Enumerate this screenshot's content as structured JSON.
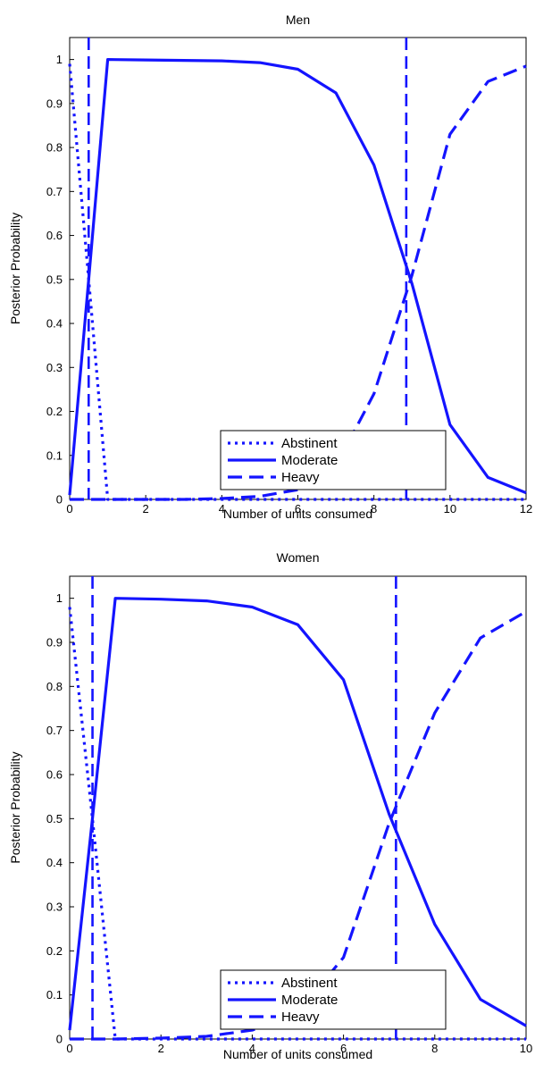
{
  "chart_data": [
    {
      "type": "line",
      "title": "Men",
      "xlabel": "Number of units consumed",
      "ylabel": "Posterior Probability",
      "xlim": [
        0,
        12
      ],
      "ylim": [
        0,
        1.05
      ],
      "xticks": [
        0,
        2,
        4,
        6,
        8,
        10,
        12
      ],
      "yticks": [
        0,
        0.1,
        0.2,
        0.3,
        0.4,
        0.5,
        0.6,
        0.7,
        0.8,
        0.9,
        1
      ],
      "grid": false,
      "legend_position": "bottom-center",
      "colors": {
        "series": "#1414ff",
        "axis": "#000000"
      },
      "series": [
        {
          "name": "Abstinent",
          "style": "dotted",
          "x": [
            0,
            0.5,
            1,
            2,
            3,
            4,
            5,
            6,
            7,
            8,
            9,
            10,
            11,
            12
          ],
          "values": [
            0.99,
            0.5,
            0,
            0,
            0,
            0,
            0,
            0,
            0,
            0,
            0,
            0,
            0,
            0
          ]
        },
        {
          "name": "Moderate",
          "style": "solid",
          "x": [
            0,
            0.5,
            1,
            2,
            3,
            4,
            5,
            6,
            7,
            8,
            9,
            10,
            11,
            12
          ],
          "values": [
            0.01,
            0.5,
            1.0,
            0.999,
            0.998,
            0.997,
            0.993,
            0.978,
            0.924,
            0.76,
            0.49,
            0.17,
            0.05,
            0.015
          ]
        },
        {
          "name": "Heavy",
          "style": "dashed",
          "x": [
            0,
            1,
            2,
            3,
            4,
            5,
            6,
            7,
            8,
            9,
            10,
            11,
            12
          ],
          "values": [
            0,
            0,
            0,
            0,
            0.002,
            0.007,
            0.022,
            0.076,
            0.24,
            0.51,
            0.83,
            0.95,
            0.985
          ]
        }
      ],
      "reference_lines_x": [
        0.5,
        8.85
      ]
    },
    {
      "type": "line",
      "title": "Women",
      "xlabel": "Number of units consumed",
      "ylabel": "Posterior Probability",
      "xlim": [
        0,
        10
      ],
      "ylim": [
        0,
        1.05
      ],
      "xticks": [
        0,
        2,
        4,
        6,
        8,
        10
      ],
      "yticks": [
        0,
        0.1,
        0.2,
        0.3,
        0.4,
        0.5,
        0.6,
        0.7,
        0.8,
        0.9,
        1
      ],
      "grid": false,
      "legend_position": "bottom-center",
      "colors": {
        "series": "#1414ff",
        "axis": "#000000"
      },
      "series": [
        {
          "name": "Abstinent",
          "style": "dotted",
          "x": [
            0,
            0.5,
            1,
            2,
            3,
            4,
            5,
            6,
            7,
            8,
            9,
            10
          ],
          "values": [
            0.98,
            0.5,
            0,
            0,
            0,
            0,
            0,
            0,
            0,
            0,
            0,
            0
          ]
        },
        {
          "name": "Moderate",
          "style": "solid",
          "x": [
            0,
            0.5,
            1,
            2,
            3,
            4,
            5,
            6,
            7,
            8,
            9,
            10
          ],
          "values": [
            0.02,
            0.5,
            1.0,
            0.998,
            0.994,
            0.98,
            0.94,
            0.815,
            0.51,
            0.26,
            0.09,
            0.03
          ]
        },
        {
          "name": "Heavy",
          "style": "dashed",
          "x": [
            0,
            1,
            2,
            3,
            4,
            5,
            6,
            7,
            8,
            9,
            10
          ],
          "values": [
            0,
            0,
            0.002,
            0.006,
            0.02,
            0.06,
            0.185,
            0.49,
            0.74,
            0.91,
            0.97
          ]
        }
      ],
      "reference_lines_x": [
        0.5,
        7.15
      ]
    }
  ]
}
